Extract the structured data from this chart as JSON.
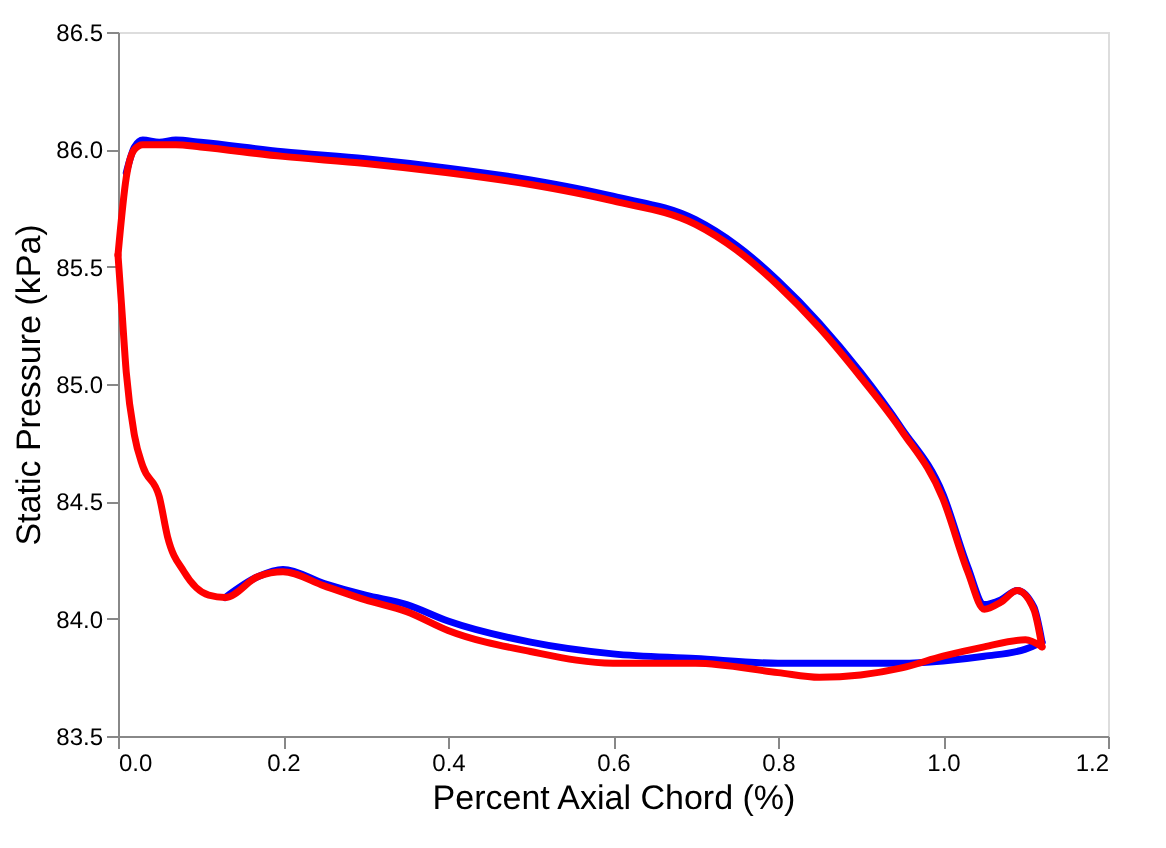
{
  "chart_data": {
    "type": "line",
    "xlabel": "Percent Axial Chord (%)",
    "ylabel": "Static Pressure (kPa)",
    "xlim": [
      0,
      1.2
    ],
    "xticks": [
      {
        "value": 0,
        "label": "0.0"
      },
      0.2,
      0.4,
      0.6,
      0.8,
      {
        "value": 1,
        "label": "1.0"
      },
      1.2
    ],
    "ylim": [
      83.5,
      86.5
    ],
    "yticks": [
      83.5,
      {
        "value": 84,
        "label": "84.0"
      },
      84.5,
      {
        "value": 85,
        "label": "85.0"
      },
      85.5,
      {
        "value": 86,
        "label": "86.0"
      },
      86.5
    ],
    "grid": false,
    "legend": false,
    "marker": "none",
    "line_style": "solid",
    "series": [
      {
        "color": "#0000ff",
        "x": [
          0.01,
          0.02,
          0.03,
          0.05,
          0.07,
          0.1,
          0.2,
          0.3,
          0.4,
          0.5,
          0.6,
          0.7,
          0.75,
          0.8,
          0.85,
          0.9,
          0.95,
          1.0,
          1.03,
          1.05,
          1.07,
          1.09,
          1.11,
          1.12
        ],
        "values": [
          85.9,
          86.01,
          86.04,
          86.03,
          86.04,
          86.03,
          85.99,
          85.96,
          85.92,
          85.87,
          85.8,
          85.7,
          85.59,
          85.44,
          85.26,
          85.05,
          84.81,
          84.53,
          84.22,
          84.06,
          84.08,
          84.12,
          84.05,
          83.9
        ]
      },
      {
        "color": "#0000ff",
        "x": [
          0.13,
          0.17,
          0.2,
          0.25,
          0.3,
          0.35,
          0.4,
          0.5,
          0.6,
          0.7,
          0.8,
          0.9,
          0.95,
          1.0,
          1.05,
          1.1,
          1.12
        ],
        "values": [
          84.09,
          84.18,
          84.21,
          84.15,
          84.1,
          84.06,
          83.99,
          83.9,
          83.85,
          83.83,
          83.81,
          83.81,
          83.81,
          83.82,
          83.84,
          83.87,
          83.9
        ]
      },
      {
        "color": "#ff0000",
        "x": [
          0,
          0.01,
          0.02,
          0.03,
          0.05,
          0.07,
          0.1,
          0.2,
          0.3,
          0.4,
          0.5,
          0.6,
          0.7,
          0.75,
          0.8,
          0.85,
          0.9,
          0.95,
          1.0,
          1.03,
          1.05,
          1.07,
          1.09,
          1.11,
          1.12
        ],
        "values": [
          85.55,
          85.88,
          86.0,
          86.02,
          86.02,
          86.02,
          86.01,
          85.97,
          85.94,
          85.9,
          85.85,
          85.78,
          85.68,
          85.57,
          85.42,
          85.24,
          85.03,
          84.8,
          84.51,
          84.2,
          84.04,
          84.07,
          84.12,
          84.04,
          83.88
        ]
      },
      {
        "color": "#ff0000",
        "x": [
          0,
          0.005,
          0.01,
          0.02,
          0.03,
          0.05,
          0.06,
          0.08,
          0.11,
          0.13,
          0.17,
          0.2,
          0.25,
          0.3,
          0.35,
          0.4,
          0.5,
          0.6,
          0.7,
          0.8,
          0.85,
          0.9,
          0.95,
          1.0,
          1.05,
          1.1,
          1.12
        ],
        "values": [
          85.55,
          85.3,
          85.05,
          84.78,
          84.65,
          84.52,
          84.35,
          84.2,
          84.1,
          84.09,
          84.18,
          84.2,
          84.14,
          84.08,
          84.03,
          83.95,
          83.86,
          83.81,
          83.81,
          83.77,
          83.75,
          83.76,
          83.79,
          83.84,
          83.88,
          83.91,
          83.88
        ]
      }
    ]
  }
}
